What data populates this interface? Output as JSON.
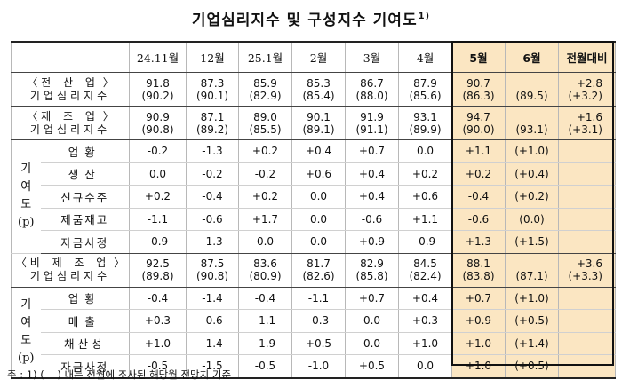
{
  "title": "기업심리지수 및 구성지수 기여도",
  "title_footnote": "1)",
  "columns": [
    "24.11월",
    "12월",
    "25.1월",
    "2월",
    "3월",
    "4월",
    "5월",
    "6월",
    "전월대비"
  ],
  "all_industry": {
    "label_line1": "전 산 업",
    "label_line2": "기업심리지수",
    "values": [
      "91.8",
      "87.3",
      "85.9",
      "85.3",
      "86.7",
      "87.9",
      "90.7",
      "",
      "+2.8"
    ],
    "forecasts": [
      "(90.2)",
      "(90.1)",
      "(82.9)",
      "(85.4)",
      "(88.0)",
      "(85.6)",
      "(86.3)",
      "(89.5)",
      "(+3.2)"
    ]
  },
  "manufacturing": {
    "label_line1": "제 조 업",
    "label_line2": "기업심리지수",
    "values": [
      "90.9",
      "87.1",
      "89.0",
      "90.1",
      "91.9",
      "93.1",
      "94.7",
      "",
      "+1.6"
    ],
    "forecasts": [
      "(90.8)",
      "(89.2)",
      "(85.5)",
      "(89.1)",
      "(91.1)",
      "(89.9)",
      "(90.0)",
      "(93.1)",
      "(+3.1)"
    ],
    "side_label": [
      "기",
      "여",
      "도",
      "(p)"
    ],
    "items": [
      {
        "name": "업황",
        "values": [
          "-0.2",
          "-1.3",
          "+0.2",
          "+0.4",
          "+0.7",
          "0.0",
          "+1.1",
          "(+1.0)"
        ]
      },
      {
        "name": "생산",
        "values": [
          "0.0",
          "-0.2",
          "-0.2",
          "+0.6",
          "+0.4",
          "+0.2",
          "+0.2",
          "(+0.4)"
        ]
      },
      {
        "name": "신규수주",
        "values": [
          "+0.2",
          "-0.4",
          "+0.2",
          "0.0",
          "+0.4",
          "+0.6",
          "-0.4",
          "(+0.2)"
        ]
      },
      {
        "name": "제품재고",
        "values": [
          "-1.1",
          "-0.6",
          "+1.7",
          "0.0",
          "-0.6",
          "+1.1",
          "-0.6",
          "(0.0)"
        ]
      },
      {
        "name": "자금사정",
        "values": [
          "-0.9",
          "-1.3",
          "0.0",
          "0.0",
          "+0.9",
          "-0.9",
          "+1.3",
          "(+1.5)"
        ]
      }
    ]
  },
  "non_manufacturing": {
    "label_line1": "비 제 조 업",
    "label_line2": "기업심리지수",
    "values": [
      "92.5",
      "87.5",
      "83.6",
      "81.7",
      "82.9",
      "84.5",
      "88.1",
      "",
      "+3.6"
    ],
    "forecasts": [
      "(89.8)",
      "(90.8)",
      "(80.9)",
      "(82.6)",
      "(85.8)",
      "(82.4)",
      "(83.8)",
      "(87.1)",
      "(+3.3)"
    ],
    "side_label": [
      "기",
      "여",
      "도",
      "(p)"
    ],
    "items": [
      {
        "name": "업황",
        "values": [
          "-0.4",
          "-1.4",
          "-0.4",
          "-1.1",
          "+0.7",
          "+0.4",
          "+0.7",
          "(+1.0)"
        ]
      },
      {
        "name": "매출",
        "values": [
          "+0.3",
          "-0.6",
          "-1.1",
          "-0.3",
          "0.0",
          "+0.3",
          "+0.9",
          "(+0.5)"
        ]
      },
      {
        "name": "채산성",
        "values": [
          "+1.0",
          "-1.4",
          "-1.9",
          "+0.5",
          "0.0",
          "+1.0",
          "+1.0",
          "(+1.4)"
        ]
      },
      {
        "name": "자금사정",
        "values": [
          "-0.5",
          "-1.5",
          "-0.5",
          "-1.0",
          "+0.5",
          "0.0",
          "+1.0",
          "(+0.5)"
        ]
      }
    ]
  },
  "note": "주 : 1) (    ) 내는 전월에 조사된 해당월 전망치 기준"
}
